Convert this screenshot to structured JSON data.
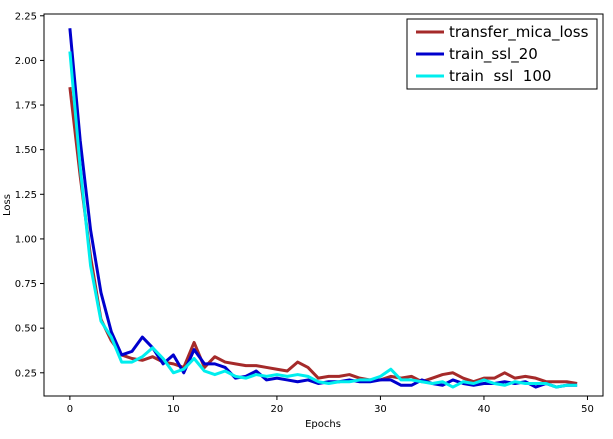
{
  "chart_data": {
    "type": "line",
    "title": "",
    "xlabel": "Epochs",
    "ylabel": "Loss",
    "xlim": [
      -2.5,
      51.5
    ],
    "ylim": [
      0.12,
      2.26
    ],
    "xticks": [
      0,
      10,
      20,
      30,
      40,
      50
    ],
    "yticks": [
      0.25,
      0.5,
      0.75,
      1.0,
      1.25,
      1.5,
      1.75,
      2.0,
      2.25
    ],
    "ytick_labels": [
      "0.25",
      "0.50",
      "0.75",
      "1.00",
      "1.25",
      "1.50",
      "1.75",
      "2.00",
      "2.25"
    ],
    "xtick_labels": [
      "0",
      "10",
      "20",
      "30",
      "40",
      "50"
    ],
    "grid": false,
    "legend_position": "top-right",
    "x": [
      0,
      1,
      2,
      3,
      4,
      5,
      6,
      7,
      8,
      9,
      10,
      11,
      12,
      13,
      14,
      15,
      16,
      17,
      18,
      19,
      20,
      21,
      22,
      23,
      24,
      25,
      26,
      27,
      28,
      29,
      30,
      31,
      32,
      33,
      34,
      35,
      36,
      37,
      38,
      39,
      40,
      41,
      42,
      43,
      44,
      45,
      46,
      47,
      48,
      49
    ],
    "series": [
      {
        "name": "transfer_mica_loss",
        "color": "#a52a2a",
        "values": [
          1.85,
          1.35,
          0.9,
          0.55,
          0.43,
          0.35,
          0.33,
          0.32,
          0.34,
          0.31,
          0.3,
          0.28,
          0.42,
          0.28,
          0.34,
          0.31,
          0.3,
          0.29,
          0.29,
          0.28,
          0.27,
          0.26,
          0.31,
          0.28,
          0.22,
          0.23,
          0.23,
          0.24,
          0.22,
          0.21,
          0.21,
          0.23,
          0.22,
          0.23,
          0.2,
          0.22,
          0.24,
          0.25,
          0.22,
          0.2,
          0.22,
          0.22,
          0.25,
          0.22,
          0.23,
          0.22,
          0.2,
          0.2,
          0.2,
          0.19
        ]
      },
      {
        "name": "train_ssl_20",
        "color": "#0000cd",
        "values": [
          2.18,
          1.55,
          1.05,
          0.7,
          0.48,
          0.35,
          0.37,
          0.45,
          0.39,
          0.3,
          0.35,
          0.25,
          0.38,
          0.3,
          0.3,
          0.28,
          0.22,
          0.23,
          0.26,
          0.21,
          0.22,
          0.21,
          0.2,
          0.21,
          0.19,
          0.2,
          0.2,
          0.21,
          0.2,
          0.2,
          0.21,
          0.21,
          0.18,
          0.18,
          0.21,
          0.19,
          0.18,
          0.21,
          0.19,
          0.18,
          0.19,
          0.19,
          0.2,
          0.19,
          0.2,
          0.17,
          0.19,
          0.17,
          0.18,
          0.18
        ]
      },
      {
        "name": "train_ssl_100",
        "color": "#00eeee",
        "values": [
          2.05,
          1.4,
          0.85,
          0.54,
          0.45,
          0.31,
          0.31,
          0.34,
          0.39,
          0.33,
          0.25,
          0.27,
          0.33,
          0.26,
          0.24,
          0.26,
          0.23,
          0.22,
          0.24,
          0.23,
          0.24,
          0.23,
          0.24,
          0.23,
          0.2,
          0.19,
          0.2,
          0.2,
          0.21,
          0.21,
          0.23,
          0.27,
          0.21,
          0.21,
          0.2,
          0.19,
          0.2,
          0.17,
          0.2,
          0.19,
          0.21,
          0.19,
          0.18,
          0.2,
          0.19,
          0.19,
          0.19,
          0.17,
          0.18,
          0.18
        ]
      }
    ]
  },
  "legend": {
    "labels": [
      "transfer_mica_loss",
      "train_ssl_20",
      "train  ssl  100"
    ]
  }
}
